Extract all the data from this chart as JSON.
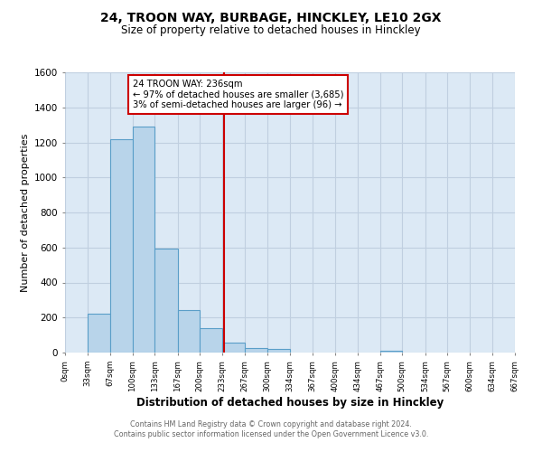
{
  "title": "24, TROON WAY, BURBAGE, HINCKLEY, LE10 2GX",
  "subtitle": "Size of property relative to detached houses in Hinckley",
  "xlabel": "Distribution of detached houses by size in Hinckley",
  "ylabel": "Number of detached properties",
  "footnote1": "Contains HM Land Registry data © Crown copyright and database right 2024.",
  "footnote2": "Contains public sector information licensed under the Open Government Licence v3.0.",
  "bin_edges": [
    0,
    33,
    67,
    100,
    133,
    167,
    200,
    233,
    267,
    300,
    334,
    367,
    400,
    434,
    467,
    500,
    534,
    567,
    600,
    634,
    667
  ],
  "bin_counts": [
    0,
    220,
    1220,
    1290,
    595,
    245,
    140,
    55,
    25,
    20,
    0,
    0,
    0,
    0,
    10,
    0,
    0,
    0,
    0,
    0
  ],
  "property_size": 236,
  "annotation_title": "24 TROON WAY: 236sqm",
  "annotation_line1": "← 97% of detached houses are smaller (3,685)",
  "annotation_line2": "3% of semi-detached houses are larger (96) →",
  "vline_color": "#cc0000",
  "bar_facecolor": "#b8d4ea",
  "bar_edgecolor": "#5a9ec8",
  "annotation_box_edgecolor": "#cc0000",
  "plot_bg_color": "#dce9f5",
  "fig_bg_color": "#ffffff",
  "ylim": [
    0,
    1600
  ],
  "yticks": [
    0,
    200,
    400,
    600,
    800,
    1000,
    1200,
    1400,
    1600
  ],
  "grid_color": "#c0cfe0"
}
